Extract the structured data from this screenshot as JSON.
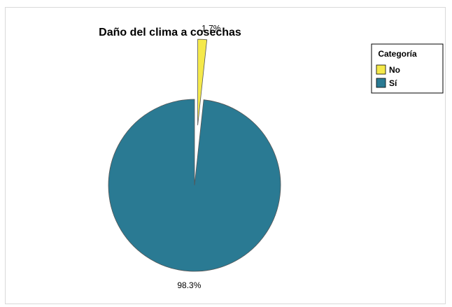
{
  "chart_data": {
    "type": "pie",
    "title": "Daño del clima a cosechas",
    "legend": {
      "title": "Categoría",
      "placement": "top-right"
    },
    "slices": [
      {
        "label": "No",
        "value": 1.7,
        "display": "1.7%",
        "color": "#f5e94a",
        "exploded": true
      },
      {
        "label": "Sí",
        "value": 98.3,
        "display": "98.3%",
        "color": "#2a7a93",
        "exploded": false
      }
    ]
  }
}
